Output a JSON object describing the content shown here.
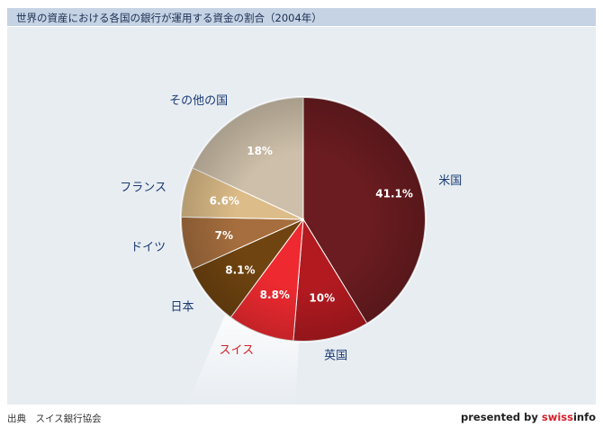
{
  "chart_data": {
    "type": "pie",
    "title": "世界の資産における各国の銀行が運用する資金の割合（2004年）",
    "slices": [
      {
        "label": "米国",
        "value": 41.1,
        "value_label": "41.1%",
        "color": "#6a1c20"
      },
      {
        "label": "英国",
        "value": 10,
        "value_label": "10%",
        "color": "#b21a20"
      },
      {
        "label": "スイス",
        "value": 8.8,
        "value_label": "8.8%",
        "color": "#ee2a30",
        "highlighted": true
      },
      {
        "label": "日本",
        "value": 8.1,
        "value_label": "8.1%",
        "color": "#704410"
      },
      {
        "label": "ドイツ",
        "value": 7,
        "value_label": "7%",
        "color": "#a66e3e"
      },
      {
        "label": "フランス",
        "value": 6.6,
        "value_label": "6.6%",
        "color": "#dcbc88"
      },
      {
        "label": "その他の国",
        "value": 18,
        "value_label": "18%",
        "color": "#cdbfa9"
      }
    ],
    "label_color": "#1a3a73",
    "highlight_label_color": "#d41f26",
    "legend": "none"
  },
  "footer": {
    "source": "出典　スイス銀行協会",
    "credit_prefix": "presented by ",
    "credit_brand_swiss": "swiss",
    "credit_brand_info": "info"
  }
}
